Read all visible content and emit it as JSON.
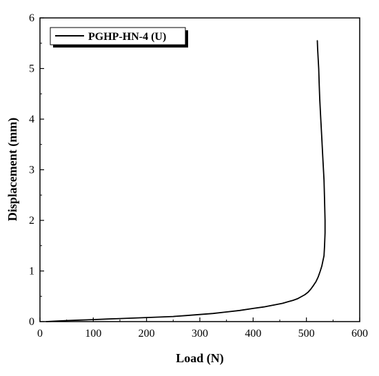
{
  "chart_data": {
    "type": "line",
    "title": "",
    "xlabel": "Load (N)",
    "ylabel": "Displacement (mm)",
    "xlim": [
      0,
      600
    ],
    "ylim": [
      0,
      6
    ],
    "x_ticks": [
      0,
      100,
      200,
      300,
      400,
      500,
      600
    ],
    "y_ticks": [
      0,
      1,
      2,
      3,
      4,
      5,
      6
    ],
    "grid": false,
    "legend_position": "top-left",
    "series": [
      {
        "name": "PGHP-HN-4 (U)",
        "color": "#000000",
        "x": [
          12,
          30,
          50,
          75,
          100,
          125,
          150,
          175,
          200,
          225,
          250,
          275,
          300,
          325,
          350,
          375,
          400,
          420,
          440,
          455,
          465,
          475,
          483,
          490,
          497,
          503,
          508,
          513,
          518,
          522,
          526,
          529,
          531,
          533,
          534,
          535,
          535,
          534,
          533,
          531,
          529,
          527,
          525,
          524,
          523,
          522,
          521,
          520.5
        ],
        "y": [
          0.0,
          0.01,
          0.02,
          0.03,
          0.04,
          0.05,
          0.06,
          0.07,
          0.08,
          0.09,
          0.1,
          0.12,
          0.14,
          0.16,
          0.19,
          0.22,
          0.26,
          0.29,
          0.33,
          0.36,
          0.39,
          0.42,
          0.45,
          0.49,
          0.53,
          0.58,
          0.64,
          0.71,
          0.79,
          0.88,
          1.0,
          1.1,
          1.2,
          1.3,
          1.5,
          1.75,
          2.0,
          2.4,
          2.8,
          3.2,
          3.6,
          4.0,
          4.4,
          4.7,
          5.0,
          5.2,
          5.4,
          5.55
        ]
      }
    ]
  }
}
